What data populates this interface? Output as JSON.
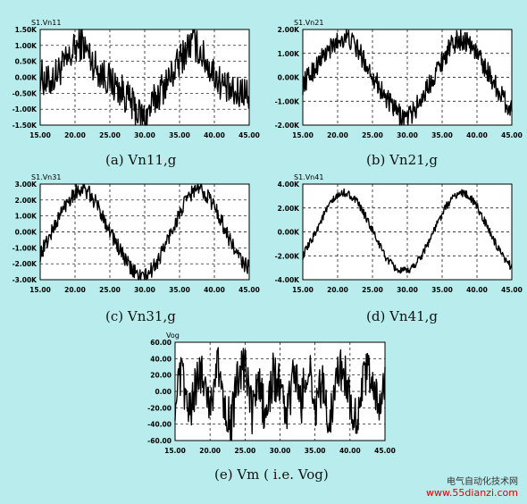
{
  "chart_data": [
    {
      "type": "line",
      "title": "S1.Vn11",
      "caption": "(a)  Vn11,g",
      "xlim": [
        15,
        45
      ],
      "ylim": [
        -1.5,
        1.5
      ],
      "x_ticks": [
        "15.00",
        "20.00",
        "25.00",
        "30.00",
        "35.00",
        "40.00",
        "45.00"
      ],
      "y_ticks": [
        "1.50K",
        "1.00K",
        "0.50K",
        "0.00K",
        "-0.50K",
        "-1.00K",
        "-1.50K"
      ],
      "series": [
        {
          "x": [
            15,
            16,
            17,
            18,
            19,
            20,
            21,
            22,
            23,
            24,
            25,
            26,
            27,
            28,
            29,
            30,
            31,
            32,
            33,
            34,
            35,
            36,
            37,
            38,
            39,
            40,
            41,
            42,
            43,
            44,
            45
          ],
          "y": [
            0.1,
            -0.2,
            0.0,
            0.3,
            0.5,
            0.9,
            1.1,
            0.7,
            0.3,
            0.1,
            -0.1,
            -0.3,
            -0.5,
            -0.8,
            -1.1,
            -1.3,
            -0.9,
            -0.5,
            -0.2,
            0.1,
            0.5,
            0.9,
            1.1,
            0.8,
            0.4,
            0.1,
            -0.2,
            -0.4,
            -0.6,
            -0.4,
            -0.6
          ],
          "noise": 0.55
        }
      ],
      "grid": true
    },
    {
      "type": "line",
      "title": "S1.Vn21",
      "caption": "(b)  Vn21,g",
      "xlim": [
        15,
        45
      ],
      "ylim": [
        -2,
        2
      ],
      "x_ticks": [
        "15.00",
        "20.00",
        "25.00",
        "30.00",
        "35.00",
        "40.00",
        "45.00"
      ],
      "y_ticks": [
        "2.00K",
        "1.00K",
        "0.00K",
        "-1.00K",
        "-2.00K"
      ],
      "series": [
        {
          "x": [
            15,
            16,
            17,
            18,
            19,
            20,
            21,
            22,
            23,
            24,
            25,
            26,
            27,
            28,
            29,
            30,
            31,
            32,
            33,
            34,
            35,
            36,
            37,
            38,
            39,
            40,
            41,
            42,
            43,
            44,
            45
          ],
          "y": [
            -0.3,
            0.1,
            0.5,
            0.9,
            1.2,
            1.5,
            1.7,
            1.5,
            1.1,
            0.6,
            0.1,
            -0.4,
            -0.9,
            -1.3,
            -1.6,
            -1.7,
            -1.4,
            -0.9,
            -0.4,
            0.2,
            0.7,
            1.2,
            1.5,
            1.6,
            1.4,
            1.0,
            0.5,
            0.0,
            -0.5,
            -1.0,
            -1.4
          ],
          "noise": 0.45
        }
      ],
      "grid": true
    },
    {
      "type": "line",
      "title": "S1.Vn31",
      "caption": "(c)  Vn31,g",
      "xlim": [
        15,
        45
      ],
      "ylim": [
        -3,
        3
      ],
      "x_ticks": [
        "15.00",
        "20.00",
        "25.00",
        "30.00",
        "35.00",
        "40.00",
        "45.00"
      ],
      "y_ticks": [
        "3.00K",
        "2.00K",
        "1.00K",
        "0.00K",
        "-1.00K",
        "-2.00K",
        "-3.00K"
      ],
      "series": [
        {
          "x": [
            15,
            16,
            17,
            18,
            19,
            20,
            21,
            22,
            23,
            24,
            25,
            26,
            27,
            28,
            29,
            30,
            31,
            32,
            33,
            34,
            35,
            36,
            37,
            38,
            39,
            40,
            41,
            42,
            43,
            44,
            45
          ],
          "y": [
            -1.4,
            -0.6,
            0.3,
            1.2,
            2.0,
            2.5,
            2.7,
            2.4,
            1.8,
            1.0,
            0.1,
            -0.8,
            -1.6,
            -2.3,
            -2.7,
            -2.8,
            -2.4,
            -1.7,
            -0.8,
            0.2,
            1.1,
            2.0,
            2.6,
            2.7,
            2.3,
            1.6,
            0.7,
            -0.3,
            -1.2,
            -1.9,
            -2.3
          ],
          "noise": 0.5
        }
      ],
      "grid": true
    },
    {
      "type": "line",
      "title": "S1.Vn41",
      "caption": "(d)  Vn41,g",
      "xlim": [
        15,
        45
      ],
      "ylim": [
        -4,
        4
      ],
      "x_ticks": [
        "15.00",
        "20.00",
        "25.00",
        "30.00",
        "35.00",
        "40.00",
        "45.00"
      ],
      "y_ticks": [
        "4.00K",
        "2.00K",
        "0.00K",
        "-2.00K",
        "-4.00K"
      ],
      "series": [
        {
          "x": [
            15,
            16,
            17,
            18,
            19,
            20,
            21,
            22,
            23,
            24,
            25,
            26,
            27,
            28,
            29,
            30,
            31,
            32,
            33,
            34,
            35,
            36,
            37,
            38,
            39,
            40,
            41,
            42,
            43,
            44,
            45
          ],
          "y": [
            -2.0,
            -1.0,
            0.2,
            1.4,
            2.4,
            3.0,
            3.3,
            3.0,
            2.3,
            1.3,
            0.1,
            -1.1,
            -2.2,
            -2.9,
            -3.3,
            -3.3,
            -2.8,
            -2.0,
            -0.9,
            0.3,
            1.5,
            2.5,
            3.1,
            3.3,
            2.9,
            2.1,
            1.0,
            -0.2,
            -1.4,
            -2.4,
            -2.9
          ],
          "noise": 0.35
        }
      ],
      "grid": true
    },
    {
      "type": "line",
      "title": "Vog",
      "caption": "(e)  Vm ( i.e.  Vog)",
      "xlim": [
        15,
        45
      ],
      "ylim": [
        -60,
        60
      ],
      "x_ticks": [
        "15.00",
        "20.00",
        "25.00",
        "30.00",
        "35.00",
        "40.00",
        "45.00"
      ],
      "y_ticks": [
        "60.00",
        "40.00",
        "20.00",
        "0.00",
        "-20.00",
        "-40.00",
        "-60.00"
      ],
      "series": [
        {
          "x": [
            15,
            16,
            17,
            18,
            19,
            20,
            21,
            22,
            23,
            24,
            25,
            26,
            27,
            28,
            29,
            30,
            31,
            32,
            33,
            34,
            35,
            36,
            37,
            38,
            39,
            40,
            41,
            42,
            43,
            44,
            45
          ],
          "y": [
            -10,
            20,
            -30,
            10,
            25,
            -20,
            35,
            -10,
            -40,
            15,
            30,
            -25,
            10,
            -35,
            20,
            5,
            -30,
            25,
            -15,
            35,
            -20,
            10,
            -40,
            20,
            30,
            -10,
            -35,
            15,
            25,
            -20,
            5
          ],
          "noise": 28
        }
      ],
      "grid": true
    }
  ],
  "watermark": {
    "line1": "电气自动化技术网",
    "line2": "www.55dianzi.com"
  },
  "colors": {
    "background": "#b9ecec",
    "plot_area": "#ffffff",
    "trace": "#000000",
    "grid": "#000000"
  }
}
